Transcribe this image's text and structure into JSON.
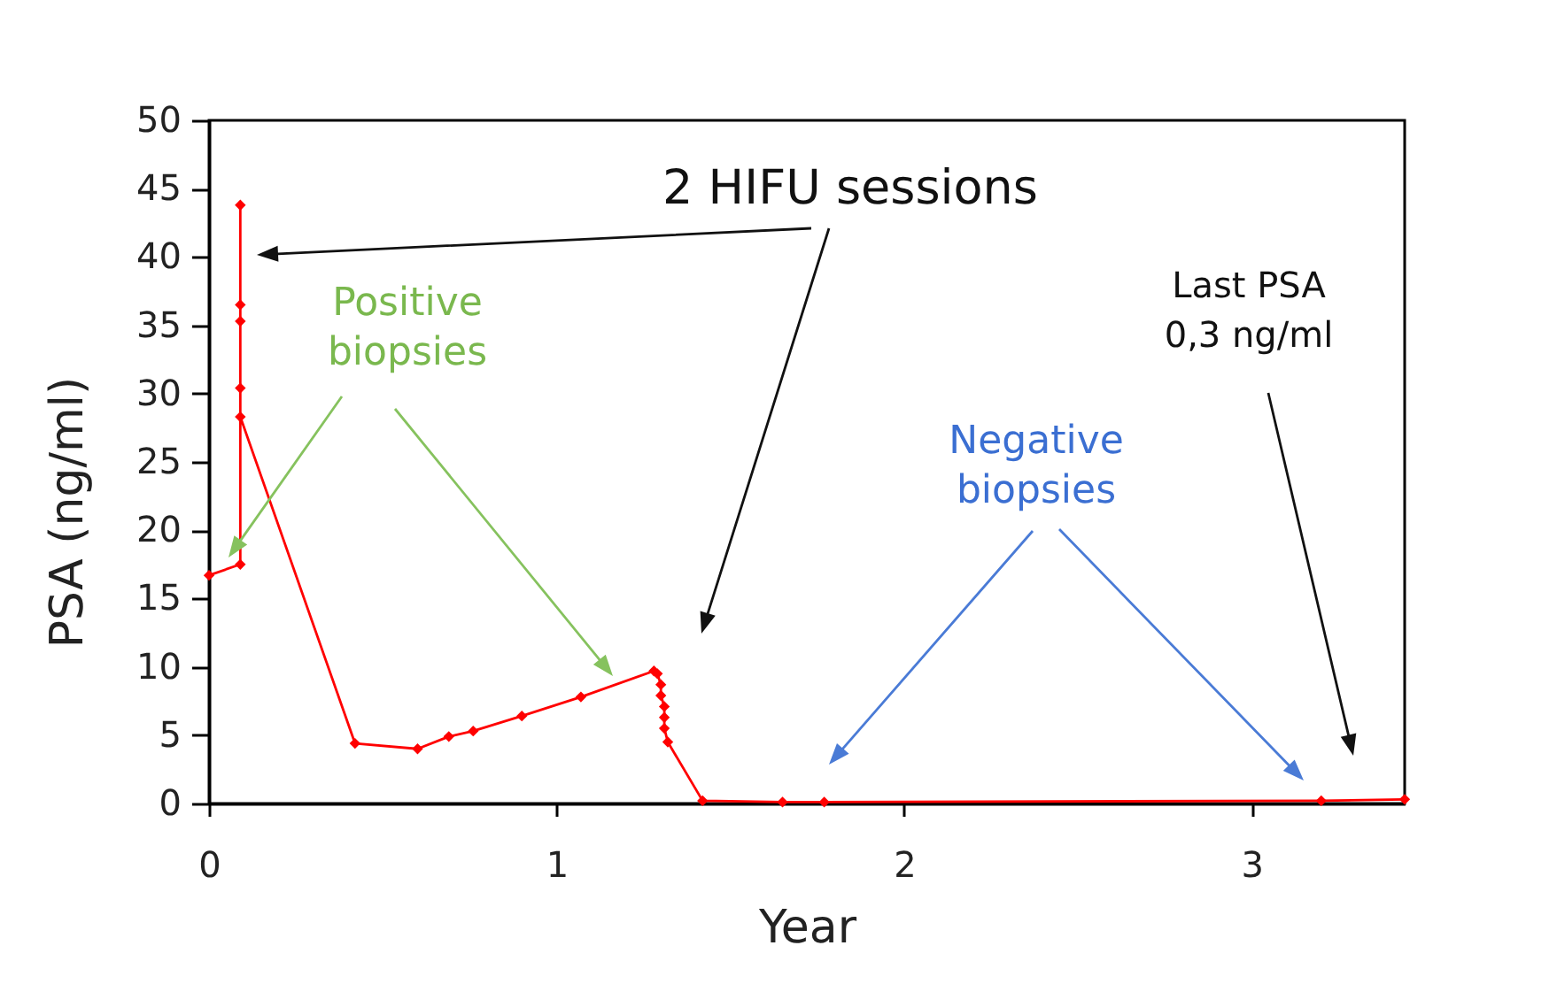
{
  "chart_data": {
    "type": "line",
    "xlabel": "Year",
    "ylabel": "PSA (ng/ml)",
    "x": [
      0,
      0.09,
      0.09,
      0.09,
      0.09,
      0.09,
      0.09,
      0.42,
      0.6,
      0.69,
      0.76,
      0.9,
      1.07,
      1.28,
      1.29,
      1.3,
      1.3,
      1.31,
      1.31,
      1.31,
      1.32,
      1.42,
      1.65,
      1.77,
      3.2,
      3.44
    ],
    "values": [
      16.7,
      17.5,
      43.8,
      36.5,
      35.3,
      30.4,
      28.3,
      4.4,
      4.0,
      4.9,
      5.3,
      6.4,
      7.8,
      9.7,
      9.5,
      8.7,
      7.9,
      7.1,
      6.3,
      5.5,
      4.5,
      0.2,
      0.1,
      0.1,
      0.2,
      0.3
    ],
    "color": "#ff0000",
    "marker": "diamond",
    "line_style": "solid",
    "xlim": [
      0,
      3.44
    ],
    "xticks": [
      0,
      1,
      2,
      3
    ],
    "ylim": [
      0,
      50
    ],
    "yticks": [
      0,
      5,
      10,
      15,
      20,
      25,
      30,
      35,
      40,
      45,
      50
    ],
    "annotations": [
      "2 HIFU sessions",
      "Positive\nbiopsies",
      "Negative\nbiopsies",
      "Last PSA\n0,3 ng/ml"
    ]
  }
}
